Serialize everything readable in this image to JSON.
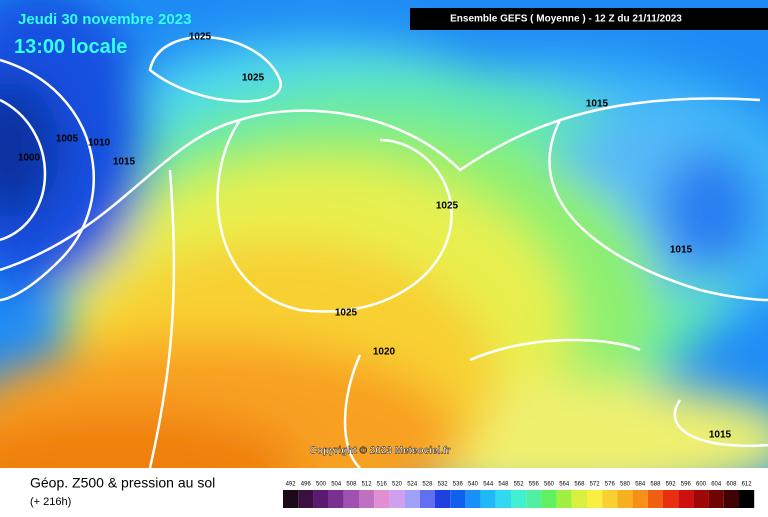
{
  "header": {
    "date": "Jeudi 30 novembre 2023",
    "time": "13:00 locale",
    "run": "Ensemble GEFS  ( Moyenne )  - 12 Z du 21/11/2023"
  },
  "isobars": [
    "1025",
    "1025",
    "1005",
    "1010",
    "1000",
    "1015",
    "1015",
    "1025",
    "1015",
    "1025",
    "1020",
    "1015"
  ],
  "copyright": "Copyright © 2023 Meteociel.fr",
  "legend": {
    "title": "Géop. Z500 & pression au sol",
    "subtitle": "(+ 216h)",
    "scale": [
      "492",
      "496",
      "500",
      "504",
      "508",
      "512",
      "516",
      "520",
      "524",
      "528",
      "532",
      "536",
      "540",
      "544",
      "548",
      "552",
      "556",
      "560",
      "564",
      "568",
      "572",
      "576",
      "580",
      "584",
      "588",
      "592",
      "596",
      "600",
      "604",
      "608",
      "612"
    ]
  }
}
